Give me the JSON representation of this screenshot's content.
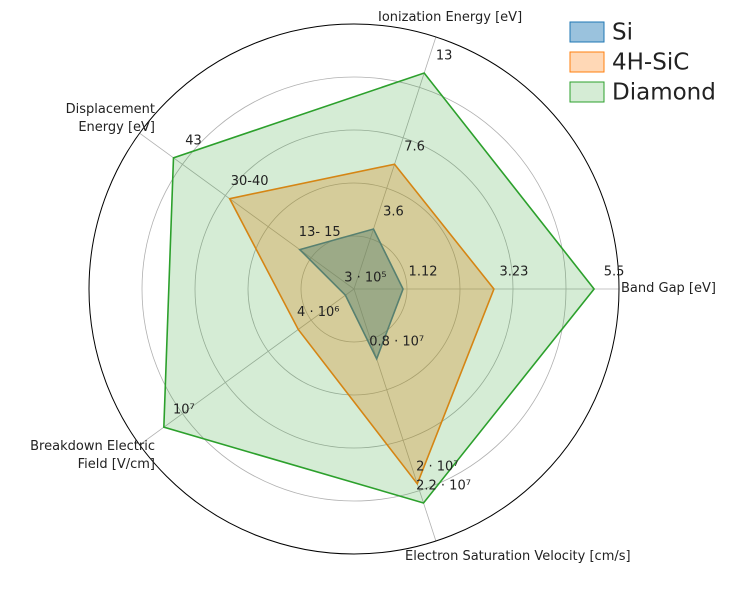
{
  "chart_data": {
    "type": "radar",
    "categories": [
      "Band Gap [eV]",
      "Ionization Energy [eV]",
      "Displacement\nEnergy [eV]",
      "Breakdown Electric\nField [V/cm]",
      "Electron Saturation Velocity [cm/s]"
    ],
    "ylim": [
      0,
      1
    ],
    "yticks": [
      0.2,
      0.4,
      0.6,
      0.8
    ],
    "grid": true,
    "legend": "upper right",
    "series": [
      {
        "name": "Si",
        "color": "#1f77b4",
        "values": [
          0.185,
          0.238,
          0.253,
          0.04,
          0.277
        ],
        "value_labels": [
          "1.12",
          "3.6",
          "13- 15",
          "3 · 10⁵",
          "0.8 · 10⁷"
        ]
      },
      {
        "name": "4H-SiC",
        "color": "#ff7f0e",
        "values": [
          0.528,
          0.495,
          0.58,
          0.26,
          0.773
        ],
        "value_labels": [
          "3.23",
          "7.6",
          "30-40",
          "4 · 10⁶",
          "2 · 10⁷"
        ]
      },
      {
        "name": "Diamond",
        "color": "#2ca02c",
        "values": [
          0.906,
          0.857,
          0.842,
          0.887,
          0.849
        ],
        "value_labels": [
          "5.5",
          "13",
          "43",
          "10⁷",
          "2.2 · 10⁷"
        ]
      }
    ]
  }
}
